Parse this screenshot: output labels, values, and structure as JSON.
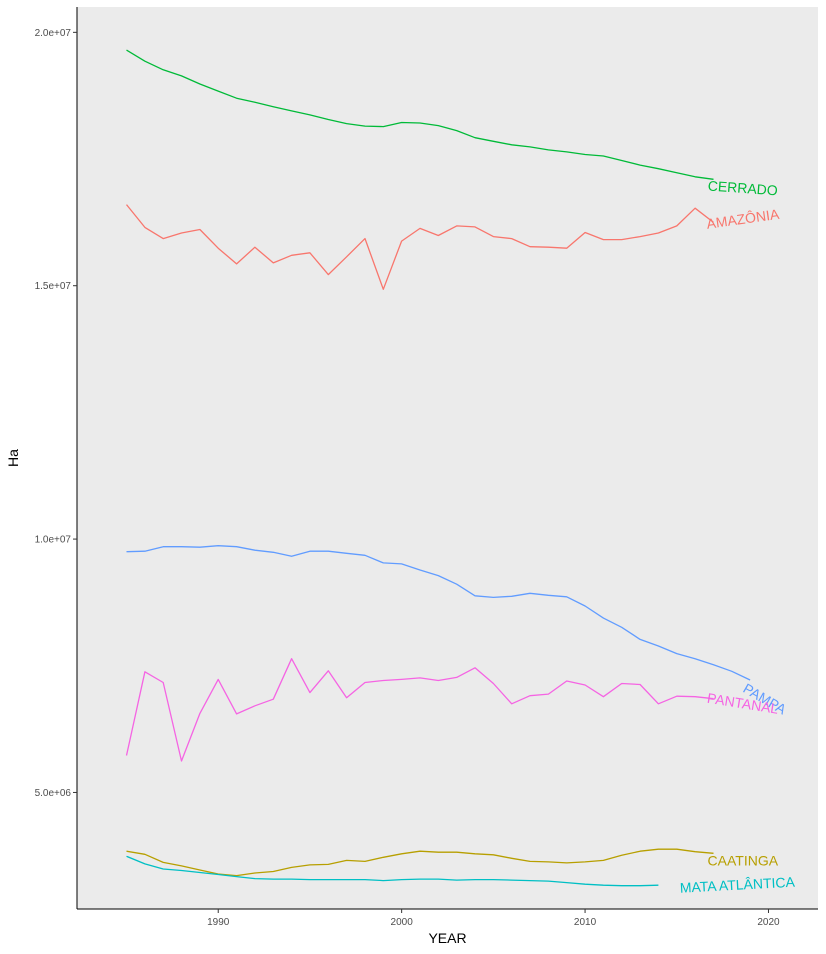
{
  "chart_data": {
    "type": "line",
    "xlabel": "YEAR",
    "ylabel": "Ha",
    "xlim": [
      1982.3,
      2022.7
    ],
    "ylim": [
      2700000,
      20500000
    ],
    "x_ticks": [
      1990,
      2000,
      2010,
      2020
    ],
    "y_ticks": [
      5000000,
      10000000,
      15000000,
      20000000
    ],
    "y_tick_labels": [
      "5.0e+06",
      "1.0e+07",
      "1.5e+07",
      "2.0e+07"
    ],
    "x_tick_labels": [
      "1990",
      "2000",
      "2010",
      "2020"
    ],
    "grid": false,
    "legend": "direct labels at line ends",
    "background": "#ebebeb",
    "series": [
      {
        "name": "CERRADO",
        "color": "#00ba38",
        "x": [
          1985,
          1986,
          1987,
          1988,
          1989,
          1990,
          1991,
          1992,
          1993,
          1994,
          1995,
          1996,
          1997,
          1998,
          1999,
          2000,
          2001,
          2002,
          2003,
          2004,
          2005,
          2006,
          2007,
          2008,
          2009,
          2010,
          2011,
          2012,
          2013,
          2014,
          2015,
          2016,
          2017
        ],
        "values": [
          19650000,
          19430000,
          19260000,
          19140000,
          18980000,
          18840000,
          18700000,
          18620000,
          18530000,
          18450000,
          18370000,
          18280000,
          18200000,
          18150000,
          18140000,
          18220000,
          18210000,
          18160000,
          18060000,
          17920000,
          17850000,
          17780000,
          17740000,
          17680000,
          17640000,
          17590000,
          17560000,
          17470000,
          17380000,
          17310000,
          17230000,
          17150000,
          17100000
        ]
      },
      {
        "name": "AMAZÔNIA",
        "color": "#f8766d",
        "x": [
          1985,
          1986,
          1987,
          1988,
          1989,
          1990,
          1991,
          1992,
          1993,
          1994,
          1995,
          1996,
          1997,
          1998,
          1999,
          2000,
          2001,
          2002,
          2003,
          2004,
          2005,
          2006,
          2007,
          2008,
          2009,
          2010,
          2011,
          2012,
          2013,
          2014,
          2015,
          2016,
          2017
        ],
        "values": [
          16600000,
          16150000,
          15930000,
          16040000,
          16110000,
          15740000,
          15430000,
          15760000,
          15450000,
          15600000,
          15650000,
          15220000,
          15570000,
          15930000,
          14930000,
          15880000,
          16130000,
          15990000,
          16180000,
          16160000,
          15970000,
          15930000,
          15770000,
          15760000,
          15740000,
          16050000,
          15910000,
          15910000,
          15970000,
          16040000,
          16180000,
          16530000,
          16250000
        ]
      },
      {
        "name": "PAMPA",
        "color": "#619cff",
        "x": [
          1985,
          1986,
          1987,
          1988,
          1989,
          1990,
          1991,
          1992,
          1993,
          1994,
          1995,
          1996,
          1997,
          1998,
          1999,
          2000,
          2001,
          2002,
          2003,
          2004,
          2005,
          2006,
          2007,
          2008,
          2009,
          2010,
          2011,
          2012,
          2013,
          2014,
          2015,
          2016,
          2017,
          2018,
          2019
        ],
        "values": [
          9750000,
          9760000,
          9850000,
          9850000,
          9840000,
          9870000,
          9850000,
          9780000,
          9740000,
          9660000,
          9760000,
          9760000,
          9720000,
          9680000,
          9530000,
          9510000,
          9390000,
          9280000,
          9110000,
          8880000,
          8850000,
          8870000,
          8930000,
          8890000,
          8860000,
          8680000,
          8440000,
          8260000,
          8020000,
          7890000,
          7740000,
          7640000,
          7520000,
          7390000,
          7220000
        ]
      },
      {
        "name": "PANTANAL",
        "color": "#f564e3",
        "x": [
          1985,
          1986,
          1987,
          1988,
          1989,
          1990,
          1991,
          1992,
          1993,
          1994,
          1995,
          1996,
          1997,
          1998,
          1999,
          2000,
          2001,
          2002,
          2003,
          2004,
          2005,
          2006,
          2007,
          2008,
          2009,
          2010,
          2011,
          2012,
          2013,
          2014,
          2015,
          2016,
          2017
        ],
        "values": [
          5730000,
          7380000,
          7170000,
          5620000,
          6560000,
          7230000,
          6550000,
          6710000,
          6840000,
          7640000,
          6970000,
          7400000,
          6870000,
          7170000,
          7210000,
          7230000,
          7260000,
          7210000,
          7270000,
          7460000,
          7150000,
          6750000,
          6910000,
          6940000,
          7200000,
          7120000,
          6890000,
          7150000,
          7130000,
          6750000,
          6900000,
          6890000,
          6850000
        ]
      },
      {
        "name": "CAATINGA",
        "color": "#b79f00",
        "x": [
          1985,
          1986,
          1987,
          1988,
          1989,
          1990,
          1991,
          1992,
          1993,
          1994,
          1995,
          1996,
          1997,
          1998,
          1999,
          2000,
          2001,
          2002,
          2003,
          2004,
          2005,
          2006,
          2007,
          2008,
          2009,
          2010,
          2011,
          2012,
          2013,
          2014,
          2015,
          2016,
          2017
        ],
        "values": [
          3840000,
          3780000,
          3620000,
          3550000,
          3470000,
          3390000,
          3360000,
          3410000,
          3440000,
          3520000,
          3570000,
          3580000,
          3660000,
          3640000,
          3720000,
          3790000,
          3840000,
          3820000,
          3820000,
          3790000,
          3770000,
          3700000,
          3640000,
          3630000,
          3610000,
          3630000,
          3660000,
          3760000,
          3840000,
          3880000,
          3880000,
          3830000,
          3800000
        ]
      },
      {
        "name": "MATA ATLÂNTICA",
        "color": "#00bfc4",
        "x": [
          1985,
          1986,
          1987,
          1988,
          1989,
          1990,
          1991,
          1992,
          1993,
          1994,
          1995,
          1996,
          1997,
          1998,
          1999,
          2000,
          2001,
          2002,
          2003,
          2004,
          2005,
          2006,
          2007,
          2008,
          2009,
          2010,
          2011,
          2012,
          2013,
          2014
        ],
        "values": [
          3740000,
          3590000,
          3490000,
          3460000,
          3420000,
          3380000,
          3340000,
          3300000,
          3290000,
          3290000,
          3280000,
          3280000,
          3280000,
          3280000,
          3260000,
          3280000,
          3290000,
          3290000,
          3270000,
          3280000,
          3280000,
          3270000,
          3260000,
          3250000,
          3220000,
          3190000,
          3170000,
          3160000,
          3160000,
          3170000
        ]
      }
    ]
  }
}
